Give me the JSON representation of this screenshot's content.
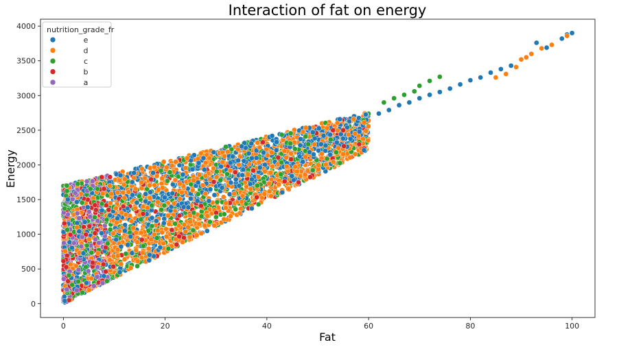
{
  "chart_data": {
    "type": "scatter",
    "title": "Interaction of fat on energy",
    "xlabel": "Fat",
    "ylabel": "Energy",
    "xlim": [
      -4.5,
      104.5
    ],
    "ylim": [
      -200,
      4100
    ],
    "xticks": [
      0,
      20,
      40,
      60,
      80,
      100
    ],
    "yticks": [
      0,
      500,
      1000,
      1500,
      2000,
      2500,
      3000,
      3500,
      4000
    ],
    "grid": false,
    "legend": {
      "title": "nutrition_grade_fr",
      "placement": "top-left",
      "entries": [
        {
          "label": "e",
          "color": "#1f77b4"
        },
        {
          "label": "d",
          "color": "#ff7f0e"
        },
        {
          "label": "c",
          "color": "#2ca02c"
        },
        {
          "label": "b",
          "color": "#d62728"
        },
        {
          "label": "a",
          "color": "#9467bd"
        }
      ]
    },
    "series": [
      {
        "name": "e",
        "color": "#1f77b4",
        "x": [
          62,
          64,
          66,
          68,
          70,
          72,
          74,
          76,
          78,
          80,
          82,
          84,
          86,
          88,
          90,
          92,
          93,
          95,
          98,
          99,
          100
        ],
        "y": [
          2740,
          2790,
          2860,
          2900,
          2960,
          3010,
          3050,
          3100,
          3160,
          3220,
          3260,
          3330,
          3380,
          3430,
          3520,
          3600,
          3760,
          3690,
          3820,
          3880,
          3900
        ]
      },
      {
        "name": "d",
        "color": "#ff7f0e",
        "x": [
          85,
          87,
          89,
          90,
          91,
          92,
          94,
          96,
          99
        ],
        "y": [
          3260,
          3310,
          3410,
          3520,
          3550,
          3600,
          3680,
          3730,
          3860
        ]
      },
      {
        "name": "c",
        "color": "#2ca02c",
        "x": [
          63,
          65,
          67,
          69,
          70,
          72,
          74
        ],
        "y": [
          2900,
          2960,
          3010,
          3060,
          3140,
          3210,
          3270
        ]
      },
      {
        "name": "b",
        "color": "#d62728",
        "x": [
          53,
          55
        ],
        "y": [
          2500,
          2500
        ]
      },
      {
        "name": "a",
        "color": "#9467bd",
        "x": [],
        "y": []
      }
    ]
  }
}
